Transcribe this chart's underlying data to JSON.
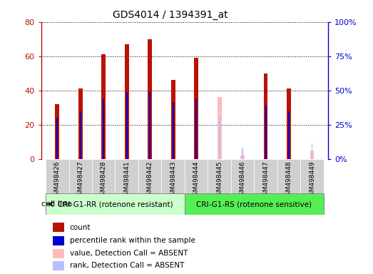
{
  "title": "GDS4014 / 1394391_at",
  "categories": [
    "GSM498426",
    "GSM498427",
    "GSM498428",
    "GSM498441",
    "GSM498442",
    "GSM498443",
    "GSM498444",
    "GSM498445",
    "GSM498446",
    "GSM498447",
    "GSM498448",
    "GSM498449"
  ],
  "count_values": [
    32,
    41,
    61,
    67,
    70,
    46,
    59,
    0,
    0,
    50,
    41,
    0
  ],
  "rank_values": [
    24,
    28,
    35,
    39,
    39,
    33,
    35,
    0,
    0,
    31,
    28,
    0
  ],
  "absent_count_values": [
    0,
    0,
    0,
    0,
    0,
    0,
    0,
    36,
    2,
    0,
    0,
    5
  ],
  "absent_rank_values": [
    0,
    0,
    0,
    0,
    0,
    0,
    0,
    24,
    6,
    0,
    0,
    9
  ],
  "group1_label": "CRI-G1-RR (rotenone resistant)",
  "group2_label": "CRI-G1-RS (rotenone sensitive)",
  "group1_indices": [
    0,
    1,
    2,
    3,
    4,
    5
  ],
  "group2_indices": [
    6,
    7,
    8,
    9,
    10,
    11
  ],
  "ylim": [
    0,
    80
  ],
  "yticks_left": [
    0,
    20,
    40,
    60,
    80
  ],
  "yticklabels_left": [
    "0",
    "20",
    "40",
    "60",
    "80"
  ],
  "yticks_right": [
    0,
    25,
    50,
    75,
    100
  ],
  "yticklabels_right": [
    "0%",
    "25%",
    "50%",
    "75%",
    "100%"
  ],
  "color_count": "#bb1100",
  "color_rank": "#0000cc",
  "color_absent_count": "#ffbbbb",
  "color_absent_rank": "#bbbbff",
  "color_group1_bg": "#ccffcc",
  "color_group2_bg": "#55ee55",
  "color_xticklabels_bg": "#d0d0d0",
  "legend_items": [
    {
      "label": "count",
      "color": "#bb1100"
    },
    {
      "label": "percentile rank within the sample",
      "color": "#0000cc"
    },
    {
      "label": "value, Detection Call = ABSENT",
      "color": "#ffbbbb"
    },
    {
      "label": "rank, Detection Call = ABSENT",
      "color": "#bbbbff"
    }
  ],
  "count_bar_width": 0.18,
  "rank_bar_width": 0.06
}
